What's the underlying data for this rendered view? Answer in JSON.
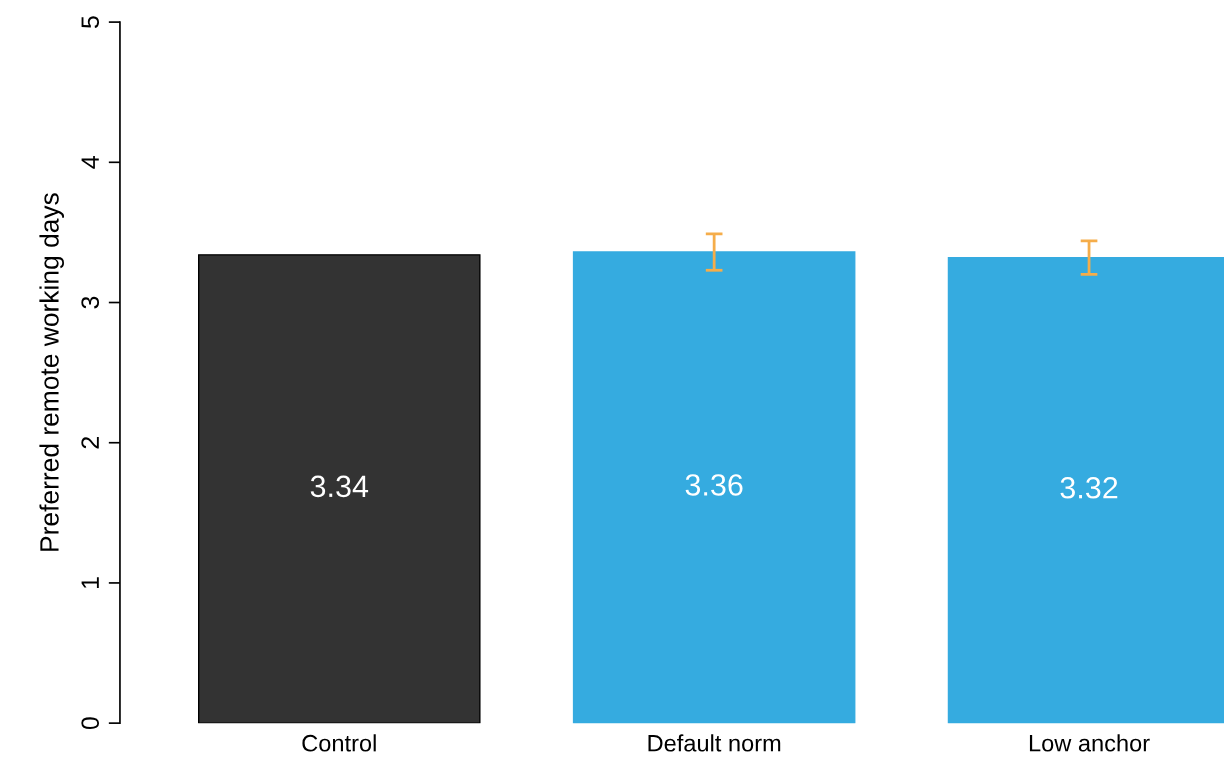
{
  "chart_data": {
    "type": "bar",
    "ylabel": "Preferred remote working days",
    "categories": [
      "Control",
      "Default norm",
      "Low anchor"
    ],
    "values": [
      3.34,
      3.36,
      3.32
    ],
    "colors": [
      "#333333",
      "#35abe0",
      "#35abe0"
    ],
    "errors": [
      null,
      0.13,
      0.12
    ],
    "ylim": [
      0,
      5
    ],
    "yticks": [
      0,
      1,
      2,
      3,
      4,
      5
    ],
    "data_labels": true,
    "grid": false,
    "legend": false
  }
}
